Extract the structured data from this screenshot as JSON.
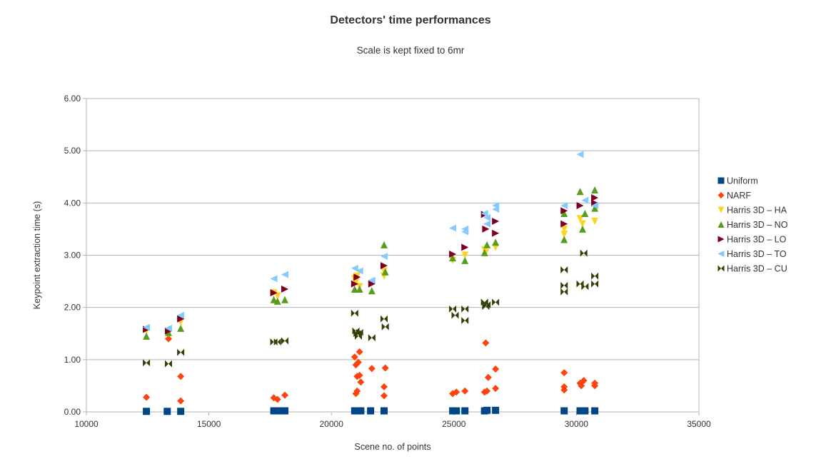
{
  "chart_data": {
    "type": "scatter",
    "title": "Detectors' time performances",
    "subtitle": "Scale is kept fixed to 6mr",
    "xlabel": "Scene no. of points",
    "ylabel": "Keypoint extraction time (s)",
    "xlim": [
      10000,
      35000
    ],
    "ylim": [
      0,
      6
    ],
    "x_ticks": [
      "10000",
      "15000",
      "20000",
      "25000",
      "30000",
      "35000"
    ],
    "y_ticks": [
      "0.00",
      "1.00",
      "2.00",
      "3.00",
      "4.00",
      "5.00",
      "6.00"
    ],
    "grid": "horizontal",
    "legend_position": "right",
    "series": [
      {
        "name": "Uniform",
        "marker": "square",
        "color": "#004586",
        "points": [
          [
            12450,
            0.01
          ],
          [
            13300,
            0.01
          ],
          [
            13850,
            0.01
          ],
          [
            17650,
            0.02
          ],
          [
            17900,
            0.02
          ],
          [
            18100,
            0.02
          ],
          [
            20950,
            0.02
          ],
          [
            21050,
            0.02
          ],
          [
            21200,
            0.02
          ],
          [
            21600,
            0.02
          ],
          [
            22150,
            0.02
          ],
          [
            24950,
            0.02
          ],
          [
            25100,
            0.02
          ],
          [
            25450,
            0.02
          ],
          [
            26250,
            0.02
          ],
          [
            26350,
            0.03
          ],
          [
            26700,
            0.03
          ],
          [
            29500,
            0.02
          ],
          [
            30150,
            0.02
          ],
          [
            30250,
            0.02
          ],
          [
            30350,
            0.02
          ],
          [
            30750,
            0.02
          ]
        ]
      },
      {
        "name": "NARF",
        "marker": "diamond",
        "color": "#ff420e",
        "points": [
          [
            12450,
            0.28
          ],
          [
            13350,
            1.4
          ],
          [
            13850,
            0.68
          ],
          [
            13850,
            0.21
          ],
          [
            17650,
            0.27
          ],
          [
            17800,
            0.24
          ],
          [
            18100,
            0.32
          ],
          [
            20950,
            1.05
          ],
          [
            21000,
            0.9
          ],
          [
            21050,
            0.68
          ],
          [
            21100,
            0.95
          ],
          [
            21150,
            1.15
          ],
          [
            21200,
            0.57
          ],
          [
            21000,
            0.35
          ],
          [
            21050,
            0.4
          ],
          [
            21150,
            0.7
          ],
          [
            21650,
            0.83
          ],
          [
            22150,
            0.48
          ],
          [
            22150,
            0.31
          ],
          [
            22200,
            0.84
          ],
          [
            24950,
            0.35
          ],
          [
            25100,
            0.38
          ],
          [
            25450,
            0.4
          ],
          [
            26250,
            0.38
          ],
          [
            26300,
            1.32
          ],
          [
            26350,
            0.4
          ],
          [
            26400,
            0.66
          ],
          [
            26700,
            0.82
          ],
          [
            26700,
            0.45
          ],
          [
            29500,
            0.75
          ],
          [
            29500,
            0.48
          ],
          [
            29500,
            0.42
          ],
          [
            30150,
            0.55
          ],
          [
            30200,
            0.5
          ],
          [
            30300,
            0.6
          ],
          [
            30750,
            0.55
          ],
          [
            30750,
            0.5
          ]
        ]
      },
      {
        "name": "Harris 3D – HA",
        "marker": "triangle-down",
        "color": "#ffd320",
        "points": [
          [
            12450,
            1.55
          ],
          [
            13350,
            1.5
          ],
          [
            13850,
            1.72
          ],
          [
            17650,
            2.28
          ],
          [
            17800,
            2.22
          ],
          [
            20950,
            2.55
          ],
          [
            21000,
            2.48
          ],
          [
            21050,
            2.6
          ],
          [
            21150,
            2.4
          ],
          [
            22150,
            2.6
          ],
          [
            22150,
            2.7
          ],
          [
            24950,
            2.9
          ],
          [
            25450,
            3.0
          ],
          [
            26250,
            3.1
          ],
          [
            26300,
            3.05
          ],
          [
            26700,
            3.15
          ],
          [
            29500,
            3.4
          ],
          [
            29500,
            3.5
          ],
          [
            30150,
            3.7
          ],
          [
            30250,
            3.6
          ],
          [
            30750,
            3.65
          ]
        ]
      },
      {
        "name": "Harris 3D – NO",
        "marker": "triangle-up",
        "color": "#579d1c",
        "points": [
          [
            12450,
            1.45
          ],
          [
            13350,
            1.52
          ],
          [
            13850,
            1.6
          ],
          [
            17650,
            2.15
          ],
          [
            17800,
            2.12
          ],
          [
            18100,
            2.15
          ],
          [
            20950,
            2.35
          ],
          [
            21150,
            2.35
          ],
          [
            21650,
            2.32
          ],
          [
            22150,
            3.2
          ],
          [
            22200,
            2.68
          ],
          [
            24950,
            2.95
          ],
          [
            25450,
            2.9
          ],
          [
            26250,
            3.05
          ],
          [
            26350,
            3.2
          ],
          [
            26700,
            3.25
          ],
          [
            29500,
            3.3
          ],
          [
            29500,
            3.8
          ],
          [
            30150,
            4.22
          ],
          [
            30250,
            3.5
          ],
          [
            30350,
            3.8
          ],
          [
            30750,
            4.25
          ],
          [
            30750,
            3.9
          ]
        ]
      },
      {
        "name": "Harris 3D – LO",
        "marker": "triangle-right",
        "color": "#7e0021",
        "points": [
          [
            12450,
            1.58
          ],
          [
            13350,
            1.55
          ],
          [
            13850,
            1.78
          ],
          [
            17650,
            2.28
          ],
          [
            18100,
            2.35
          ],
          [
            20950,
            2.45
          ],
          [
            21050,
            2.58
          ],
          [
            21650,
            2.45
          ],
          [
            22150,
            2.8
          ],
          [
            24950,
            3.02
          ],
          [
            25450,
            3.15
          ],
          [
            26250,
            3.78
          ],
          [
            26300,
            3.5
          ],
          [
            26700,
            3.65
          ],
          [
            26700,
            3.42
          ],
          [
            29500,
            3.85
          ],
          [
            29500,
            3.6
          ],
          [
            30150,
            3.95
          ],
          [
            30750,
            4.1
          ],
          [
            30750,
            4.0
          ]
        ]
      },
      {
        "name": "Harris 3D – TO",
        "marker": "triangle-left",
        "color": "#83caff",
        "points": [
          [
            12450,
            1.62
          ],
          [
            13350,
            1.6
          ],
          [
            13850,
            1.85
          ],
          [
            17650,
            2.55
          ],
          [
            18100,
            2.63
          ],
          [
            20950,
            2.75
          ],
          [
            21150,
            2.7
          ],
          [
            21650,
            2.52
          ],
          [
            22150,
            2.98
          ],
          [
            24950,
            3.52
          ],
          [
            25450,
            3.45
          ],
          [
            25450,
            3.5
          ],
          [
            26250,
            3.8
          ],
          [
            26350,
            3.72
          ],
          [
            26350,
            3.6
          ],
          [
            26700,
            3.95
          ],
          [
            26700,
            3.88
          ],
          [
            29500,
            3.95
          ],
          [
            30150,
            4.93
          ],
          [
            30350,
            4.05
          ],
          [
            30750,
            3.95
          ]
        ]
      },
      {
        "name": "Harris 3D – CU",
        "marker": "bowtie",
        "color": "#314004",
        "points": [
          [
            12450,
            0.94
          ],
          [
            13350,
            0.92
          ],
          [
            13850,
            1.14
          ],
          [
            17650,
            1.34
          ],
          [
            17800,
            1.34
          ],
          [
            18100,
            1.36
          ],
          [
            20950,
            1.89
          ],
          [
            21000,
            1.55
          ],
          [
            21050,
            1.5
          ],
          [
            21100,
            1.45
          ],
          [
            21150,
            1.52
          ],
          [
            21650,
            1.42
          ],
          [
            22150,
            1.78
          ],
          [
            22200,
            1.63
          ],
          [
            24950,
            1.97
          ],
          [
            25050,
            1.85
          ],
          [
            25450,
            1.97
          ],
          [
            25450,
            1.75
          ],
          [
            26250,
            2.1
          ],
          [
            26300,
            2.02
          ],
          [
            26350,
            2.05
          ],
          [
            26700,
            2.1
          ],
          [
            29500,
            2.72
          ],
          [
            29500,
            2.42
          ],
          [
            29500,
            2.3
          ],
          [
            30150,
            2.45
          ],
          [
            30300,
            3.04
          ],
          [
            30350,
            2.4
          ],
          [
            30750,
            2.6
          ],
          [
            30750,
            2.45
          ]
        ]
      }
    ]
  }
}
